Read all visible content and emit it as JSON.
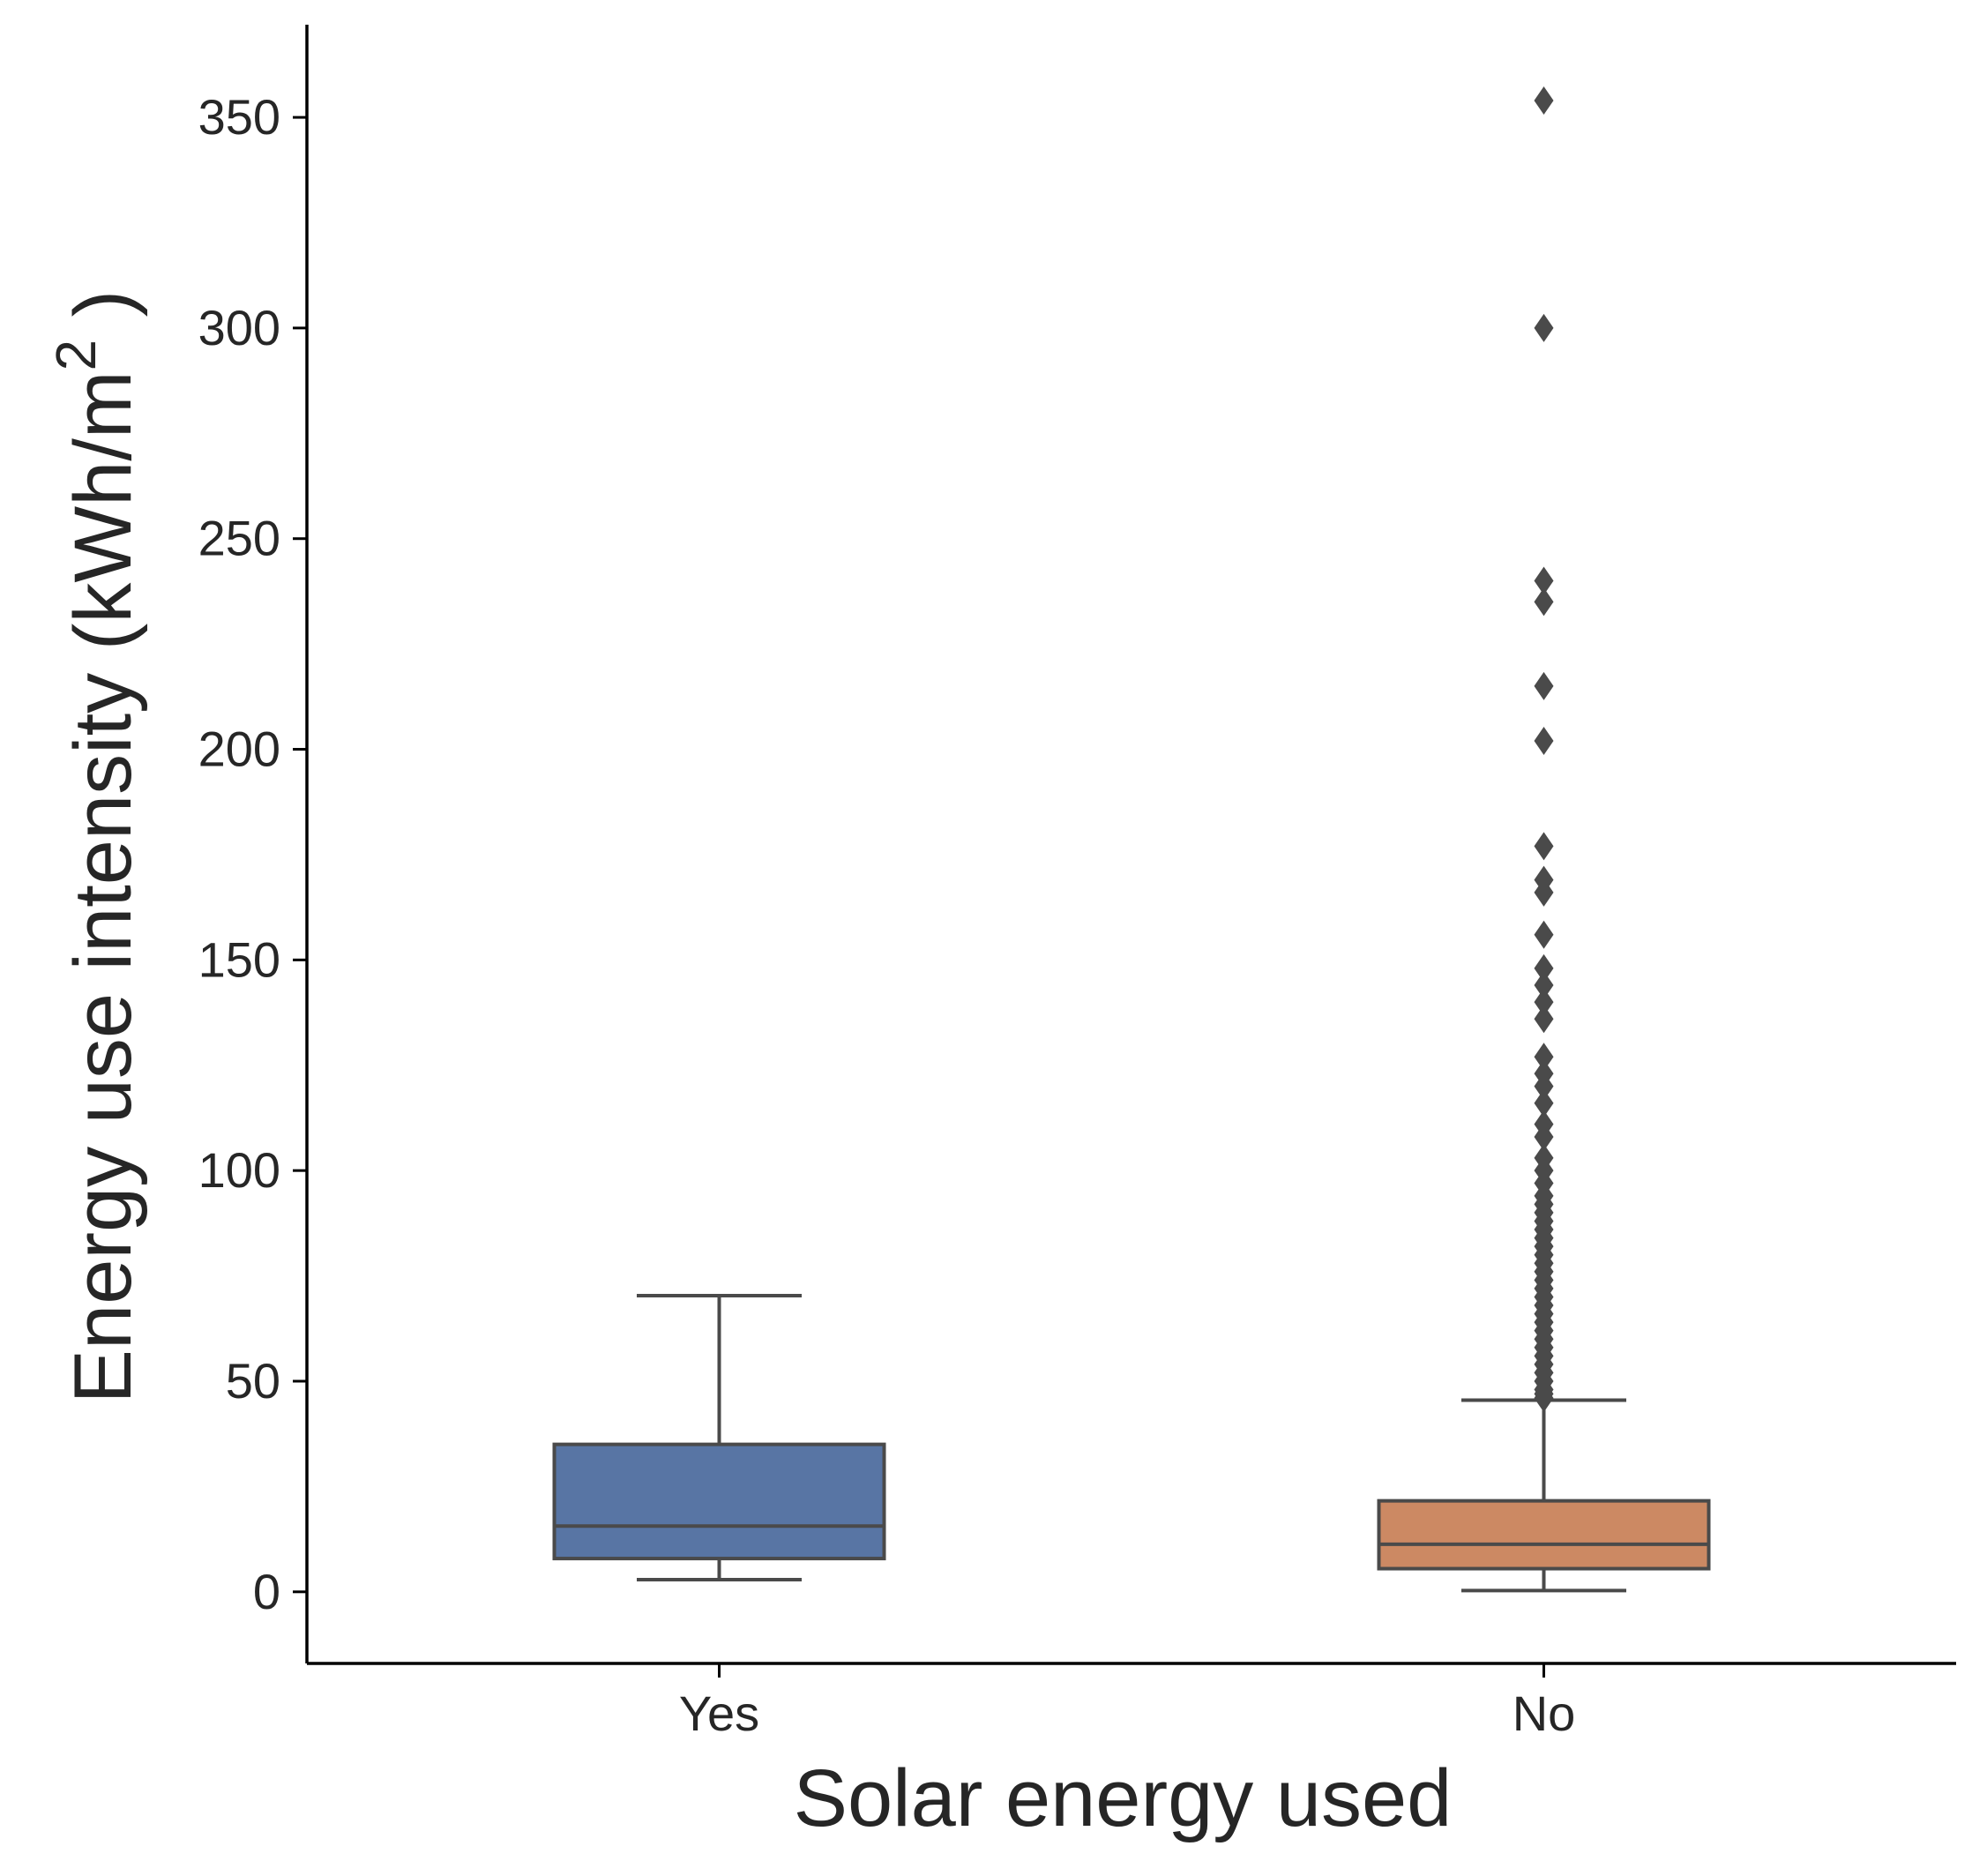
{
  "chart_data": {
    "type": "box",
    "xlabel": "Solar energy used",
    "ylabel": {
      "text": "Energy use intensity (kWh/m",
      "superscript": "2",
      "suffix": ")"
    },
    "ylim": [
      -17,
      372
    ],
    "yticks": [
      {
        "value": 0,
        "label": "0"
      },
      {
        "value": 50,
        "label": "50"
      },
      {
        "value": 100,
        "label": "100"
      },
      {
        "value": 150,
        "label": "150"
      },
      {
        "value": 200,
        "label": "200"
      },
      {
        "value": 250,
        "label": "250"
      },
      {
        "value": 300,
        "label": "300"
      },
      {
        "value": 350,
        "label": "350"
      }
    ],
    "categories": [
      "Yes",
      "No"
    ],
    "grid": false,
    "boxes": [
      {
        "category": "Yes",
        "color": "#5875a4",
        "whisker_low": 2.9,
        "q1": 7.9,
        "median": 15.6,
        "q3": 35.0,
        "whisker_high": 70.3,
        "outliers": []
      },
      {
        "category": "No",
        "color": "#cc8963",
        "whisker_low": 0.3,
        "q1": 5.5,
        "median": 11.3,
        "q3": 21.6,
        "whisker_high": 45.5,
        "outliers": [
          354,
          300,
          240,
          235,
          215,
          202,
          177,
          169,
          166,
          156,
          148,
          144,
          140,
          136,
          127,
          123,
          120,
          116,
          111,
          108,
          103,
          100,
          97,
          94,
          92,
          90,
          88,
          86,
          84,
          82,
          80,
          78,
          76,
          74,
          72,
          70,
          68,
          66,
          64,
          62,
          60,
          58,
          56,
          54,
          52,
          50,
          48,
          47,
          46
        ]
      }
    ]
  },
  "style": {
    "axis_color": "#000000",
    "box_edge_color": "#4a4a4a"
  }
}
